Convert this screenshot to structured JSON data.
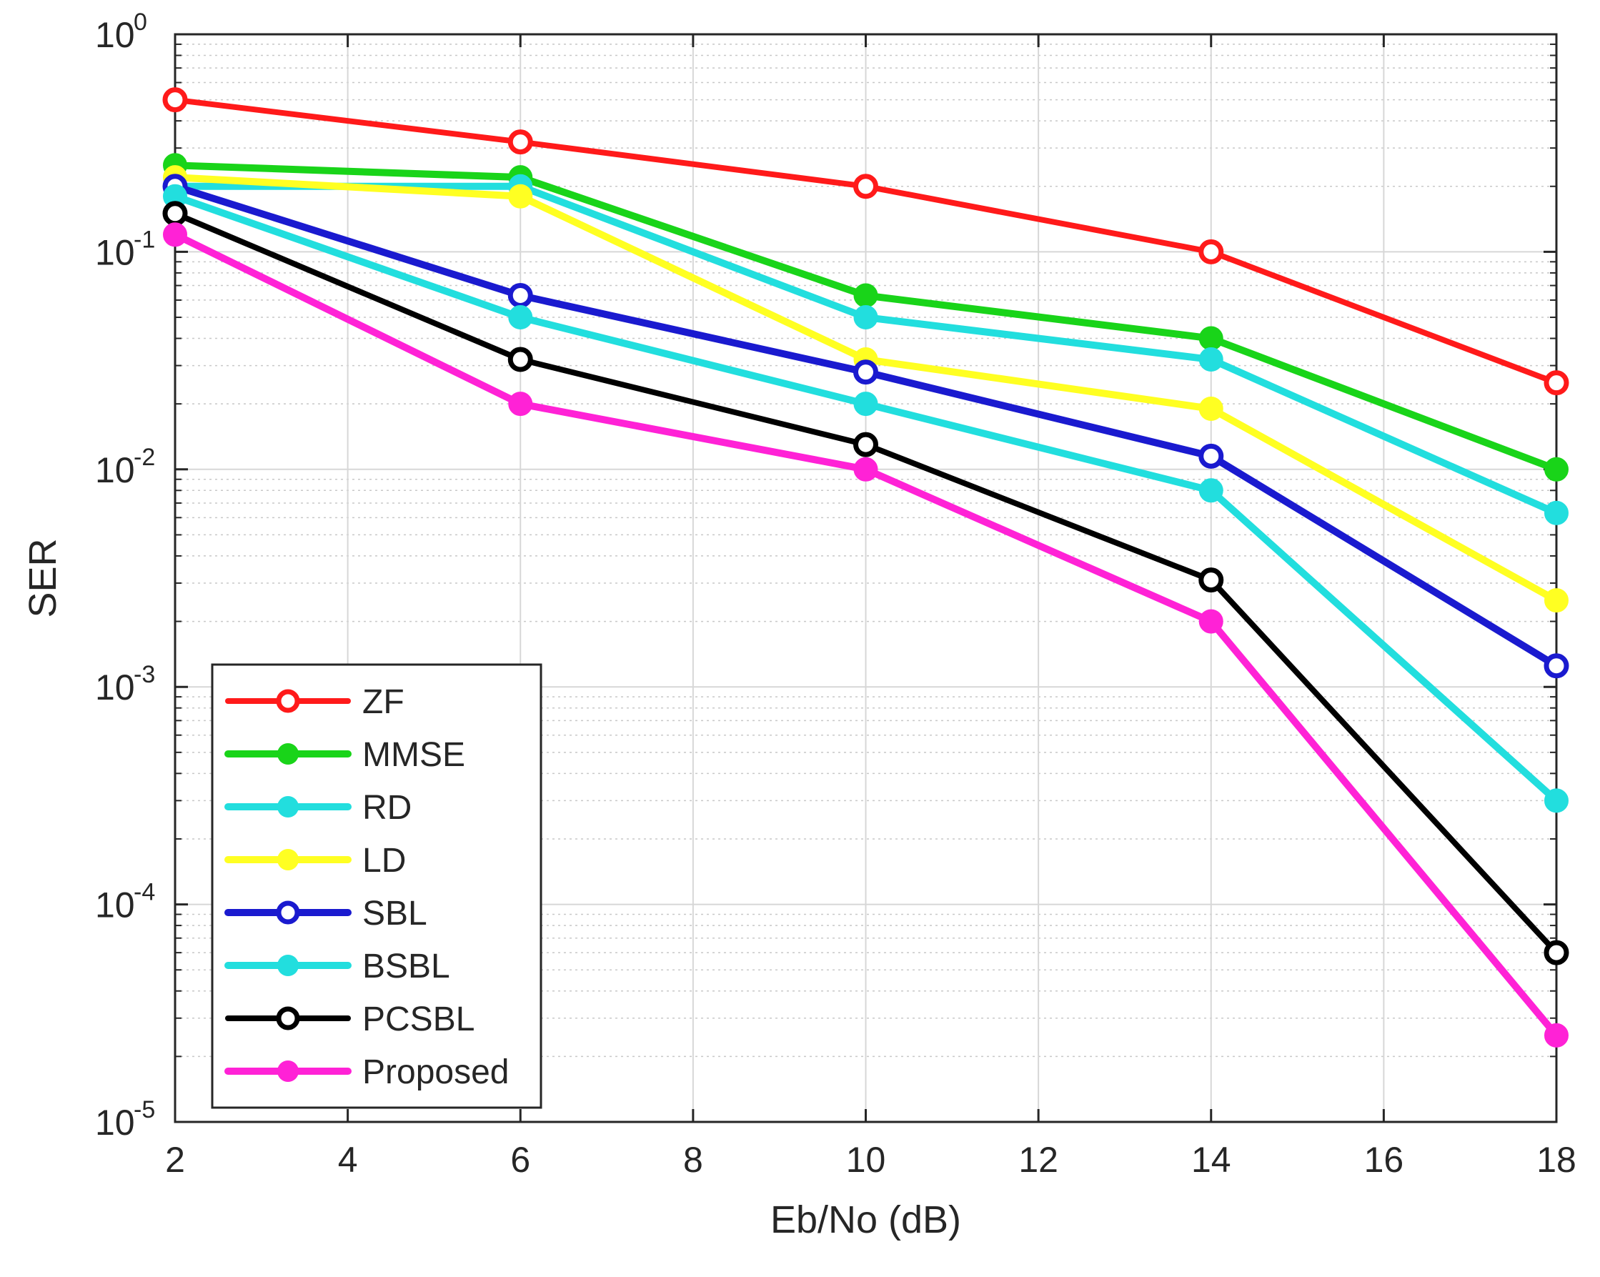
{
  "chart_data": {
    "type": "line",
    "title": "",
    "xlabel": "Eb/No (dB)",
    "ylabel": "SER",
    "yscale": "log",
    "xlim": [
      2,
      18
    ],
    "ylim_exponents": [
      -5,
      0
    ],
    "x": [
      2,
      6,
      10,
      14,
      18
    ],
    "xticks": [
      "2",
      "4",
      "6",
      "8",
      "10",
      "12",
      "14",
      "16",
      "18"
    ],
    "yticks": [
      {
        "base": "10",
        "exp": "0"
      },
      {
        "base": "10",
        "exp": "-1"
      },
      {
        "base": "10",
        "exp": "-2"
      },
      {
        "base": "10",
        "exp": "-3"
      },
      {
        "base": "10",
        "exp": "-4"
      },
      {
        "base": "10",
        "exp": "-5"
      }
    ],
    "grid": true,
    "legend_position": "bottom-left",
    "series": [
      {
        "name": "ZF",
        "color": "#ff1a1a",
        "marker": "open",
        "values": [
          0.5,
          0.32,
          0.2,
          0.1,
          0.025
        ]
      },
      {
        "name": "MMSE",
        "color": "#19d419",
        "marker": "filled",
        "values": [
          0.25,
          0.22,
          0.063,
          0.04,
          0.01
        ]
      },
      {
        "name": "RD",
        "color": "#22dede",
        "marker": "filled",
        "values": [
          0.2,
          0.2,
          0.05,
          0.032,
          0.0063
        ]
      },
      {
        "name": "LD",
        "color": "#ffff22",
        "marker": "filled",
        "values": [
          0.22,
          0.18,
          0.032,
          0.019,
          0.0025
        ]
      },
      {
        "name": "SBL",
        "color": "#1a1acf",
        "marker": "open",
        "values": [
          0.2,
          0.063,
          0.028,
          0.0115,
          0.00125
        ]
      },
      {
        "name": "BSBL",
        "color": "#22dede",
        "marker": "filled",
        "values": [
          0.18,
          0.05,
          0.02,
          0.008,
          0.0003
        ]
      },
      {
        "name": "PCSBL",
        "color": "#000000",
        "marker": "open",
        "values": [
          0.15,
          0.032,
          0.013,
          0.0031,
          6e-05
        ]
      },
      {
        "name": "Proposed",
        "color": "#ff22d6",
        "marker": "filled",
        "values": [
          0.12,
          0.02,
          0.01,
          0.002,
          2.5e-05
        ]
      }
    ]
  }
}
